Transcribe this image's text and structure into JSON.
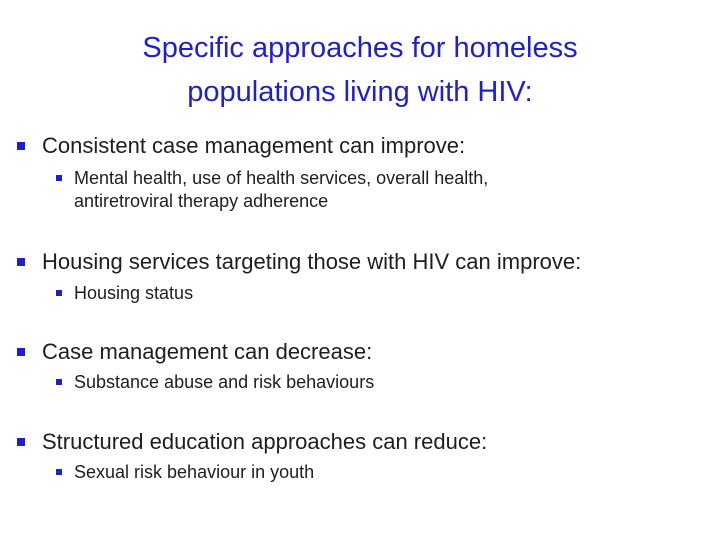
{
  "title": {
    "line1": "Specific approaches for homeless",
    "line2": "populations living with HIV:"
  },
  "bullets": [
    {
      "text": "Consistent case management can improve:",
      "sub": [
        "Mental health, use of health services, overall health,",
        "antiretroviral therapy adherence"
      ]
    },
    {
      "text": "Housing services targeting those with HIV can improve:",
      "sub": [
        "Housing status"
      ]
    },
    {
      "text": "Case management can decrease:",
      "sub": [
        "Substance abuse and risk behaviours"
      ]
    },
    {
      "text": "Structured education approaches can reduce:",
      "sub": [
        "Sexual risk behaviour in youth"
      ]
    }
  ],
  "colors": {
    "title": "#1f1fd2",
    "bullet": "#1f1fd2",
    "text": "#1e1e1e"
  }
}
